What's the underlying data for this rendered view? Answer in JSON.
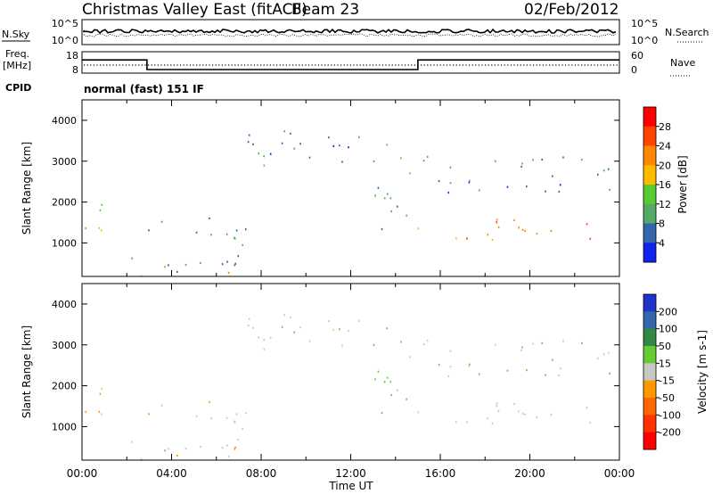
{
  "header": {
    "title": "Christmas Valley East (fitACF)",
    "beam": "Beam 23",
    "date": "02/Feb/2012"
  },
  "top_panels": {
    "nsky_label": "N.Sky",
    "nsky_ticks": [
      "10^5",
      "10^0"
    ],
    "nsearch_label": "N.Search",
    "nsearch_ticks": [
      "10^5",
      "10^0"
    ],
    "freq_label": "Freq.",
    "freq_unit": "[MHz]",
    "freq_ticks": [
      "18",
      "8"
    ],
    "nave_label": "Nave",
    "nave_ticks": [
      "60",
      "0"
    ],
    "cpid_label": "CPID",
    "cpid_text": "normal (fast) 151 IF"
  },
  "panels": {
    "ylabel": "Slant Range [km]",
    "yticks": [
      "4000",
      "3000",
      "2000",
      "1000"
    ],
    "xticks": [
      "00:00",
      "04:00",
      "08:00",
      "12:00",
      "16:00",
      "20:00",
      "00:00"
    ],
    "xlabel": "Time UT"
  },
  "power_scale": {
    "label": "Power [dB]",
    "ticks": [
      "28",
      "24",
      "20",
      "16",
      "12",
      "8",
      "4"
    ],
    "colors": [
      "#ff0000",
      "#ff4400",
      "#ff8800",
      "#ffbb00",
      "#55cc33",
      "#55aa66",
      "#3366aa",
      "#1122ee"
    ]
  },
  "velocity_scale": {
    "label": "Velocity [m s-1]",
    "ticks": [
      "200",
      "100",
      "50",
      "15",
      "-15",
      "-50",
      "-100",
      "-200"
    ],
    "colors": [
      "#2233cc",
      "#3366aa",
      "#338844",
      "#66cc33",
      "#c8c8c0",
      "#ff9900",
      "#ff6600",
      "#ff3300",
      "#ff0000"
    ]
  },
  "chart_data": {
    "type": "heatmap",
    "x_range_hours": [
      0,
      24
    ],
    "y_range_km": [
      180,
      4500
    ],
    "frequency_mhz": [
      {
        "from_hour": 0,
        "to_hour": 2.9,
        "value": 15
      },
      {
        "from_hour": 2.9,
        "to_hour": 15.0,
        "value": 10.5
      },
      {
        "from_hour": 15.0,
        "to_hour": 24,
        "value": 15
      }
    ],
    "echo_regions": [
      {
        "t0": 0.0,
        "t1": 1.3,
        "r0": 1250,
        "r1": 2500,
        "power_db": 18,
        "velocity": -5
      },
      {
        "t0": 0.0,
        "t1": 0.3,
        "r0": 3300,
        "r1": 3800,
        "power_db": 8,
        "velocity": 0
      },
      {
        "t0": 2.2,
        "t1": 7.3,
        "r0": 300,
        "r1": 1700,
        "power_db": 8,
        "velocity": -8
      },
      {
        "t0": 2.5,
        "t1": 7.0,
        "r0": 200,
        "r1": 450,
        "power_db": 22,
        "velocity": 20
      },
      {
        "t0": 6.3,
        "t1": 7.8,
        "r0": 250,
        "r1": 500,
        "power_db": 26,
        "velocity": -40
      },
      {
        "t0": 6.8,
        "t1": 8.5,
        "r0": 2900,
        "r1": 3500,
        "power_db": 10,
        "velocity": -5
      },
      {
        "t0": 7.4,
        "t1": 13.5,
        "r0": 3000,
        "r1": 3900,
        "power_db": 7,
        "velocity": 5
      },
      {
        "t0": 13.0,
        "t1": 14.9,
        "r0": 1200,
        "r1": 3600,
        "power_db": 10,
        "velocity": 25
      },
      {
        "t0": 14.9,
        "t1": 24.0,
        "r0": 1100,
        "r1": 1700,
        "power_db": 22,
        "velocity": 0
      },
      {
        "t0": 15.0,
        "t1": 24.0,
        "r0": 2200,
        "r1": 3200,
        "power_db": 7,
        "velocity": 10
      }
    ]
  }
}
